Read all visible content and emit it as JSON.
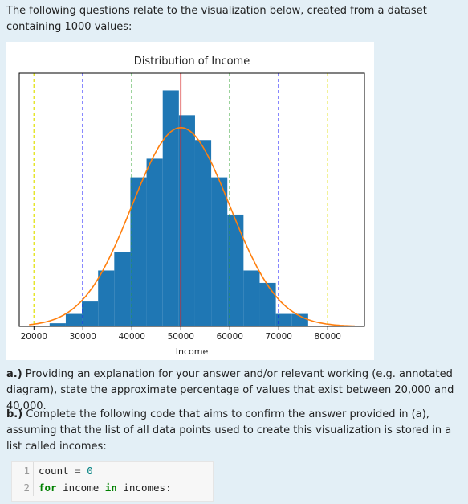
{
  "intro_text": "The following questions relate to the visualization below, created from a dataset containing 1000 values:",
  "question_a": {
    "label": "a.)",
    "text": " Providing an explanation for your answer and/or relevant working (e.g. annotated diagram), state the approximate percentage of values that exist between 20,000 and 40,000."
  },
  "question_b": {
    "label": "b.)",
    "text": " Complete the following code that aims to confirm the answer provided in (a), assuming that the list of all data points used to create this visualization is stored in a list called incomes:"
  },
  "code": {
    "lines": [
      {
        "num": "1",
        "tokens": [
          "count",
          " = ",
          "0"
        ]
      },
      {
        "num": "2",
        "tokens": [
          "for",
          " income ",
          "in",
          " incomes:"
        ]
      }
    ]
  },
  "colors": {
    "bar": "#1f77b4",
    "curve": "#ff7f0e",
    "mean_line": "#d62728",
    "sd1_line": "#2ca02c",
    "sd2_line": "#0000ff",
    "sd3_line": "#e5e52b"
  },
  "chart_data": {
    "type": "bar",
    "title": "Distribution of Income",
    "xlabel": "Income",
    "ylabel": "",
    "xlim": [
      17000,
      87500
    ],
    "xticks": [
      20000,
      30000,
      40000,
      50000,
      60000,
      70000,
      80000
    ],
    "tick_labels": [
      "20000",
      "30000",
      "40000",
      "50000",
      "60000",
      "70000",
      "80000"
    ],
    "bins": [
      {
        "x0": 23200,
        "x1": 26500,
        "count": 0.5
      },
      {
        "x0": 26500,
        "x1": 29800,
        "count": 2
      },
      {
        "x0": 29800,
        "x1": 33100,
        "count": 4
      },
      {
        "x0": 33100,
        "x1": 36400,
        "count": 9
      },
      {
        "x0": 36400,
        "x1": 39700,
        "count": 12
      },
      {
        "x0": 39700,
        "x1": 43000,
        "count": 24
      },
      {
        "x0": 43000,
        "x1": 46300,
        "count": 27
      },
      {
        "x0": 46300,
        "x1": 49600,
        "count": 38
      },
      {
        "x0": 49600,
        "x1": 52900,
        "count": 34
      },
      {
        "x0": 52900,
        "x1": 56200,
        "count": 30
      },
      {
        "x0": 56200,
        "x1": 59500,
        "count": 24
      },
      {
        "x0": 59500,
        "x1": 62800,
        "count": 18
      },
      {
        "x0": 62800,
        "x1": 66100,
        "count": 9
      },
      {
        "x0": 66100,
        "x1": 69400,
        "count": 7
      },
      {
        "x0": 69400,
        "x1": 72700,
        "count": 2
      },
      {
        "x0": 72700,
        "x1": 76000,
        "count": 2
      }
    ],
    "ymax": 40,
    "curve": {
      "mean": 50000,
      "sd": 10000,
      "peak": 32
    },
    "vlines": [
      {
        "x": 50000,
        "style": "solid",
        "color_key": "mean_line"
      },
      {
        "x": 40000,
        "style": "dashed",
        "color_key": "sd1_line"
      },
      {
        "x": 60000,
        "style": "dashed",
        "color_key": "sd1_line"
      },
      {
        "x": 30000,
        "style": "dashed",
        "color_key": "sd2_line"
      },
      {
        "x": 70000,
        "style": "dashed",
        "color_key": "sd2_line"
      },
      {
        "x": 20000,
        "style": "dashed",
        "color_key": "sd3_line"
      },
      {
        "x": 80000,
        "style": "dashed",
        "color_key": "sd3_line"
      }
    ],
    "grid": false
  }
}
